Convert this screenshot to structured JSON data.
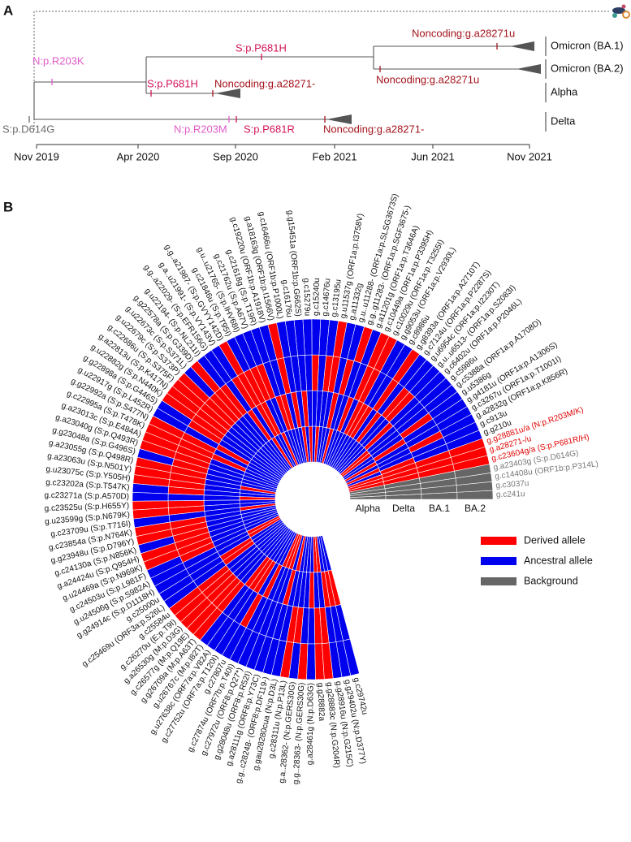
{
  "panel_a": {
    "label": "A",
    "time_axis": [
      "Nov 2019",
      "Apr 2020",
      "Sep 2020",
      "Feb 2021",
      "Jun 2021",
      "Nov 2021"
    ],
    "mutations": [
      {
        "text": "S:p.D614G",
        "color": "#6b6b6b"
      },
      {
        "text": "N:p.R203K",
        "color": "#e05bc8"
      },
      {
        "text": "S:p.P681H",
        "color": "#d3145a"
      },
      {
        "text": "Noncoding:g.a28271u",
        "color": "#a3141c"
      },
      {
        "text": "S:p.P681H",
        "color": "#d3145a"
      },
      {
        "text": "Noncoding:g.a28271-",
        "color": "#a3141c"
      },
      {
        "text": "Noncoding:g.a28271u",
        "color": "#a3141c"
      },
      {
        "text": "N:p.R203M",
        "color": "#e05bc8"
      },
      {
        "text": "S:p.P681R",
        "color": "#d3145a"
      },
      {
        "text": "Noncoding:g.a28271-",
        "color": "#a3141c"
      }
    ],
    "lineages": [
      "Omicron (BA.1)",
      "Omicron (BA.2)",
      "Alpha",
      "Delta"
    ]
  },
  "panel_b": {
    "label": "B",
    "rings": [
      "Alpha",
      "Delta",
      "BA.1",
      "BA.2"
    ],
    "legend": [
      {
        "name": "Derived allele",
        "color": "#ff0000"
      },
      {
        "name": "Ancestral allele",
        "color": "#0000ee"
      },
      {
        "name": "Background",
        "color": "#666666"
      }
    ],
    "rows": [
      {
        "label": "g.c241u",
        "label_color": "#777777",
        "states": [
          2,
          2,
          2,
          2
        ]
      },
      {
        "label": "g.c3037u",
        "label_color": "#777777",
        "states": [
          2,
          2,
          2,
          2
        ]
      },
      {
        "label": "g.c14408u (ORF1b:p.P314L)",
        "label_color": "#777777",
        "states": [
          2,
          2,
          2,
          2
        ]
      },
      {
        "label": "g.a23403g (S:p.D614G)",
        "label_color": "#777777",
        "states": [
          2,
          2,
          2,
          2
        ]
      },
      {
        "label": "g.c23604g/a (S:p.P681R/H)",
        "label_color": "#e00000",
        "states": [
          0,
          0,
          0,
          0
        ]
      },
      {
        "label": "g.a28271-/u",
        "label_color": "#e00000",
        "states": [
          0,
          0,
          0,
          0
        ]
      },
      {
        "label": "g.g28881u/a (N:p.R203M/K)",
        "label_color": "#e00000",
        "states": [
          0,
          0,
          0,
          0
        ]
      },
      {
        "label": "g.g210u",
        "states": [
          1,
          0,
          1,
          1
        ]
      },
      {
        "label": "g.c913u",
        "states": [
          0,
          1,
          1,
          1
        ]
      },
      {
        "label": "g.a2832g (ORF1a:p.K856R)",
        "states": [
          1,
          1,
          0,
          1
        ]
      },
      {
        "label": "g.c3267u (ORF1a:p.T1001I)",
        "states": [
          0,
          1,
          1,
          1
        ]
      },
      {
        "label": "g.g4181u (ORF1a:p.A1306S)",
        "states": [
          1,
          0,
          1,
          1
        ]
      },
      {
        "label": "g.u5386g",
        "states": [
          1,
          1,
          0,
          1
        ]
      },
      {
        "label": "g.c5388a (ORF1a:p.A1708D)",
        "states": [
          0,
          1,
          1,
          1
        ]
      },
      {
        "label": "g.c5986u",
        "states": [
          0,
          1,
          1,
          1
        ]
      },
      {
        "label": "g.c6402u (ORF1a:p.P2046L)",
        "states": [
          1,
          0,
          1,
          1
        ]
      },
      {
        "label": "g.u..u6513- (ORF1a:p.S2083I)",
        "states": [
          1,
          1,
          0,
          1
        ]
      },
      {
        "label": "g.u6954c (ORF1a:p.I2230T)",
        "states": [
          1,
          1,
          0,
          1
        ]
      },
      {
        "label": "g.c7124u (ORF1a:p.P2287S)",
        "states": [
          1,
          0,
          1,
          1
        ]
      },
      {
        "label": "g.g8393a (ORF1a:p.A2710T)",
        "states": [
          1,
          1,
          0,
          0
        ]
      },
      {
        "label": "g.c8986u",
        "states": [
          1,
          0,
          1,
          1
        ]
      },
      {
        "label": "g.g9053u (ORF1a:p.V2930L)",
        "states": [
          1,
          0,
          1,
          1
        ]
      },
      {
        "label": "g.c10029u (ORF1a:p.T3255I)",
        "states": [
          1,
          0,
          0,
          0
        ]
      },
      {
        "label": "g.c10449a (ORF1a:p.P3395H)",
        "states": [
          1,
          1,
          0,
          0
        ]
      },
      {
        "label": "g.a11201g (ORF1a:p.T3646A)",
        "states": [
          1,
          0,
          1,
          1
        ]
      },
      {
        "label": "g.g..g11283- (ORF1a:p.SGF3675-)",
        "states": [
          1,
          1,
          1,
          0
        ]
      },
      {
        "label": "g.u..u11288- (ORF1a:p.SLSG3673S)",
        "states": [
          0,
          1,
          0,
          1
        ]
      },
      {
        "label": "g.a11332g",
        "states": [
          1,
          0,
          1,
          1
        ]
      },
      {
        "label": "g.u11537g (ORF1a:p.I3758V)",
        "states": [
          1,
          1,
          0,
          0
        ]
      },
      {
        "label": "g.c13195u",
        "states": [
          1,
          1,
          0,
          1
        ]
      },
      {
        "label": "g.c14676u",
        "states": [
          0,
          1,
          1,
          1
        ]
      },
      {
        "label": "g.c15240u",
        "states": [
          1,
          1,
          0,
          1
        ]
      },
      {
        "label": "g.c15279u",
        "states": [
          0,
          1,
          1,
          1
        ]
      },
      {
        "label": "g.g15451a (ORF1b:p.G662S)",
        "states": [
          1,
          0,
          1,
          1
        ]
      },
      {
        "label": "g.c16176u",
        "states": [
          0,
          1,
          1,
          1
        ]
      },
      {
        "label": "g.c16466u (ORF1b:p.P1000L)",
        "states": [
          1,
          0,
          1,
          1
        ]
      },
      {
        "label": "g.a18163g (ORF1b:p.I1566V)",
        "states": [
          1,
          1,
          0,
          0
        ]
      },
      {
        "label": "g.c19220u (ORF1b:p.A1918V)",
        "states": [
          1,
          0,
          1,
          1
        ]
      },
      {
        "label": "g.c21618g (S:p.T19R)",
        "states": [
          1,
          0,
          1,
          1
        ]
      },
      {
        "label": "g.c21762u (S:p.A67V)",
        "states": [
          1,
          1,
          0,
          1
        ]
      },
      {
        "label": "g.u..u21765- (S:p.IHV68I)",
        "states": [
          0,
          1,
          0,
          1
        ]
      },
      {
        "label": "g.c21846u (S:p.T95I)",
        "states": [
          1,
          0,
          0,
          1
        ]
      },
      {
        "label": "g.g..a21987- (S:p.GVYY142D)",
        "states": [
          1,
          0,
          0,
          0
        ]
      },
      {
        "label": "g.a..u21991- (S:p.VY143V)",
        "states": [
          0,
          1,
          0,
          1
        ]
      },
      {
        "label": "g.g..a22029- (S:p.EFR156G)",
        "states": [
          1,
          0,
          1,
          1
        ]
      },
      {
        "label": "g.u22194- (S:p.NL211I)",
        "states": [
          1,
          1,
          0,
          1
        ]
      },
      {
        "label": "g.g22578a (S:p.G339D)",
        "states": [
          1,
          1,
          0,
          0
        ]
      },
      {
        "label": "g.u22673c (S:p.S371L)",
        "states": [
          1,
          1,
          0,
          1
        ]
      },
      {
        "label": "g.u22679c (S:p.S373P)",
        "states": [
          1,
          1,
          0,
          0
        ]
      },
      {
        "label": "g.c22686u (S:p.S375F)",
        "states": [
          1,
          1,
          0,
          0
        ]
      },
      {
        "label": "g.a22813u (S:p.K417N)",
        "states": [
          1,
          1,
          0,
          0
        ]
      },
      {
        "label": "g.u22882g (S:p.N440K)",
        "states": [
          1,
          1,
          0,
          0
        ]
      },
      {
        "label": "g.g22898a (S:p.G446S)",
        "states": [
          1,
          1,
          0,
          1
        ]
      },
      {
        "label": "g.u22917g (S:p.L452R)",
        "states": [
          1,
          0,
          1,
          1
        ]
      },
      {
        "label": "g.g22992a (S:p.S477N)",
        "states": [
          1,
          1,
          0,
          0
        ]
      },
      {
        "label": "g.c22995a (S:p.T478K)",
        "states": [
          1,
          0,
          0,
          0
        ]
      },
      {
        "label": "g.a23013c (S:p.E484A)",
        "states": [
          1,
          1,
          0,
          0
        ]
      },
      {
        "label": "g.a23040g (S:p.Q493R)",
        "states": [
          1,
          1,
          0,
          0
        ]
      },
      {
        "label": "g.g23048a (S:p.G496S)",
        "states": [
          1,
          1,
          0,
          1
        ]
      },
      {
        "label": "g.a23055g (S:p.Q498R)",
        "states": [
          1,
          1,
          0,
          0
        ]
      },
      {
        "label": "g.a23063u (S:p.N501Y)",
        "states": [
          0,
          1,
          0,
          0
        ]
      },
      {
        "label": "g.u23075c (S:p.Y505H)",
        "states": [
          1,
          1,
          0,
          0
        ]
      },
      {
        "label": "g.c23202a (S:p.T547K)",
        "states": [
          1,
          1,
          0,
          1
        ]
      },
      {
        "label": "g.c23271a (S:p.A570D)",
        "states": [
          0,
          1,
          1,
          1
        ]
      },
      {
        "label": "g.c23525u (S:p.H655Y)",
        "states": [
          1,
          1,
          0,
          0
        ]
      },
      {
        "label": "g.u23599g (S:p.N679K)",
        "states": [
          1,
          1,
          0,
          0
        ]
      },
      {
        "label": "g.c23709u (S:p.T716I)",
        "states": [
          0,
          1,
          1,
          1
        ]
      },
      {
        "label": "g.c23854a (S:p.N764K)",
        "states": [
          1,
          1,
          0,
          0
        ]
      },
      {
        "label": "g.g23948u (S:p.D796Y)",
        "states": [
          1,
          1,
          0,
          0
        ]
      },
      {
        "label": "g.c24130a (S:p.N856K)",
        "states": [
          1,
          1,
          0,
          1
        ]
      },
      {
        "label": "g.a24424u (S:p.Q954H)",
        "states": [
          1,
          1,
          0,
          0
        ]
      },
      {
        "label": "g.u24469a (S:p.N969K)",
        "states": [
          1,
          1,
          0,
          0
        ]
      },
      {
        "label": "g.c24503u (S:p.L981F)",
        "states": [
          1,
          1,
          0,
          1
        ]
      },
      {
        "label": "g.u24506g (S:p.S982A)",
        "states": [
          0,
          1,
          1,
          1
        ]
      },
      {
        "label": "g.g24914c (S:p.D1118H)",
        "states": [
          0,
          1,
          1,
          1
        ]
      },
      {
        "label": "g.c25000u",
        "states": [
          1,
          0,
          1,
          1
        ]
      },
      {
        "label": "g.c25469u (ORF3a:p.S26L)",
        "states": [
          1,
          0,
          1,
          1
        ]
      },
      {
        "label": "g.c25584u",
        "states": [
          1,
          1,
          0,
          0
        ]
      },
      {
        "label": "g.c26270u (E:p.T9I)",
        "states": [
          1,
          1,
          0,
          0
        ]
      },
      {
        "label": "g.a26530g (M:p.D3G)",
        "states": [
          1,
          1,
          0,
          0
        ]
      },
      {
        "label": "g.c26577g (M:p.Q19E)",
        "states": [
          1,
          1,
          0,
          0
        ]
      },
      {
        "label": "g.g26709a (M:p.A63T)",
        "states": [
          1,
          1,
          0,
          0
        ]
      },
      {
        "label": "g.u26767c (M:p.I82T)",
        "states": [
          1,
          0,
          1,
          1
        ]
      },
      {
        "label": "g.u27638c (ORF7a:p.V82A)",
        "states": [
          1,
          0,
          1,
          1
        ]
      },
      {
        "label": "g.c27752u (ORF7a:p.T120I)",
        "states": [
          1,
          0,
          1,
          1
        ]
      },
      {
        "label": "g.c27807u",
        "states": [
          1,
          1,
          0,
          1
        ]
      },
      {
        "label": "g.c27874u (ORF7b:p.T40I)",
        "states": [
          1,
          0,
          1,
          1
        ]
      },
      {
        "label": "g.c27972u (ORF8:p.Q27*)",
        "states": [
          0,
          1,
          1,
          1
        ]
      },
      {
        "label": "g.g28048u (ORF8:p.R52I)",
        "states": [
          0,
          1,
          1,
          1
        ]
      },
      {
        "label": "g.a28111g (ORF8:p.Y73C)",
        "states": [
          0,
          1,
          1,
          1
        ]
      },
      {
        "label": "g.g..c28248- (ORF8:p.DF119-)",
        "states": [
          1,
          0,
          1,
          1
        ]
      },
      {
        "label": "g.gau28280cua (N:p.D3L)",
        "states": [
          0,
          1,
          1,
          1
        ]
      },
      {
        "label": "g.c28311u (N:p.P13L)",
        "states": [
          1,
          1,
          0,
          0
        ]
      },
      {
        "label": "g.a..28362- (N:p.GERS30G)",
        "states": [
          1,
          1,
          0,
          1
        ]
      },
      {
        "label": "g.g..28363- (N:p.GERS30G)",
        "states": [
          1,
          1,
          1,
          0
        ]
      },
      {
        "label": "g.a28461g (N:p.D63G)",
        "states": [
          1,
          0,
          1,
          1
        ]
      },
      {
        "label": "g.g28882a",
        "states": [
          0,
          1,
          0,
          0
        ]
      },
      {
        "label": "g.g28883c (N:p.G204R)",
        "states": [
          0,
          1,
          0,
          0
        ]
      },
      {
        "label": "g.g28916u (N:p.G215C)",
        "states": [
          1,
          0,
          1,
          1
        ]
      },
      {
        "label": "g.g29402u (N:p.D377Y)",
        "states": [
          1,
          0,
          1,
          1
        ]
      },
      {
        "label": "g.c29742u",
        "states": [
          1,
          0,
          1,
          1
        ]
      }
    ]
  }
}
